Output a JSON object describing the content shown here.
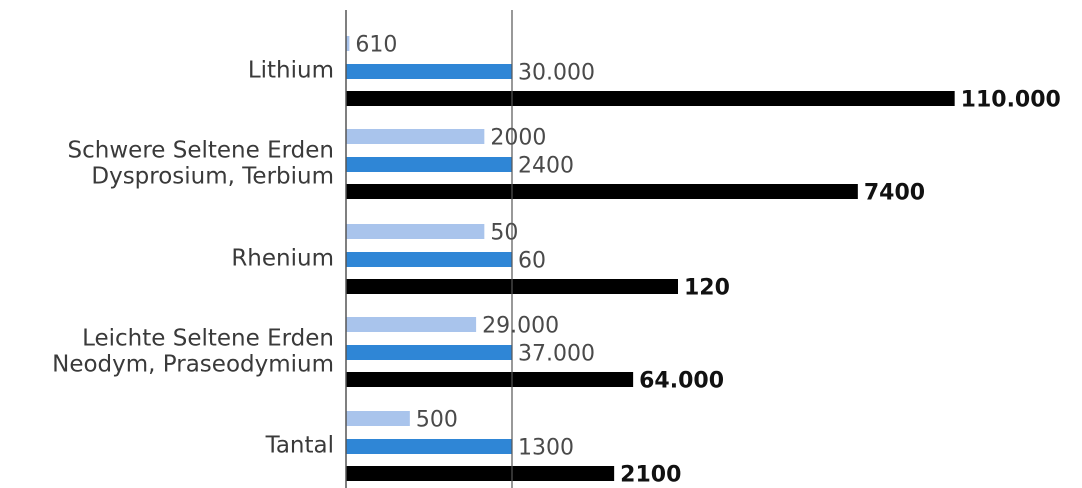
{
  "chart_data": {
    "type": "bar",
    "orientation": "horizontal",
    "grid": false,
    "legend": "none",
    "categories": [
      [
        "Lithium"
      ],
      [
        "Schwere Seltene Erden",
        "Dysprosium, Terbium"
      ],
      [
        "Rhenium"
      ],
      [
        "Leichte Seltene Erden",
        "Neodym, Praseodymium"
      ],
      [
        "Tantal"
      ]
    ],
    "series": [
      {
        "color": "#a9c4ec",
        "values": [
          610,
          2000,
          50,
          29000,
          500
        ],
        "labels": [
          "610",
          "2000",
          "50",
          "29.000",
          "500"
        ]
      },
      {
        "color": "#2f86d6",
        "values": [
          30000,
          2400,
          60,
          37000,
          1300
        ],
        "labels": [
          "30.000",
          "2400",
          "60",
          "37.000",
          "1300"
        ]
      },
      {
        "color": "#000000",
        "values": [
          110000,
          7400,
          120,
          64000,
          2100
        ],
        "labels": [
          "110.000",
          "7400",
          "120",
          "64.000",
          "2100"
        ],
        "bold_labels": true
      }
    ],
    "reference_line": "middle series (each category scaled individually)"
  }
}
